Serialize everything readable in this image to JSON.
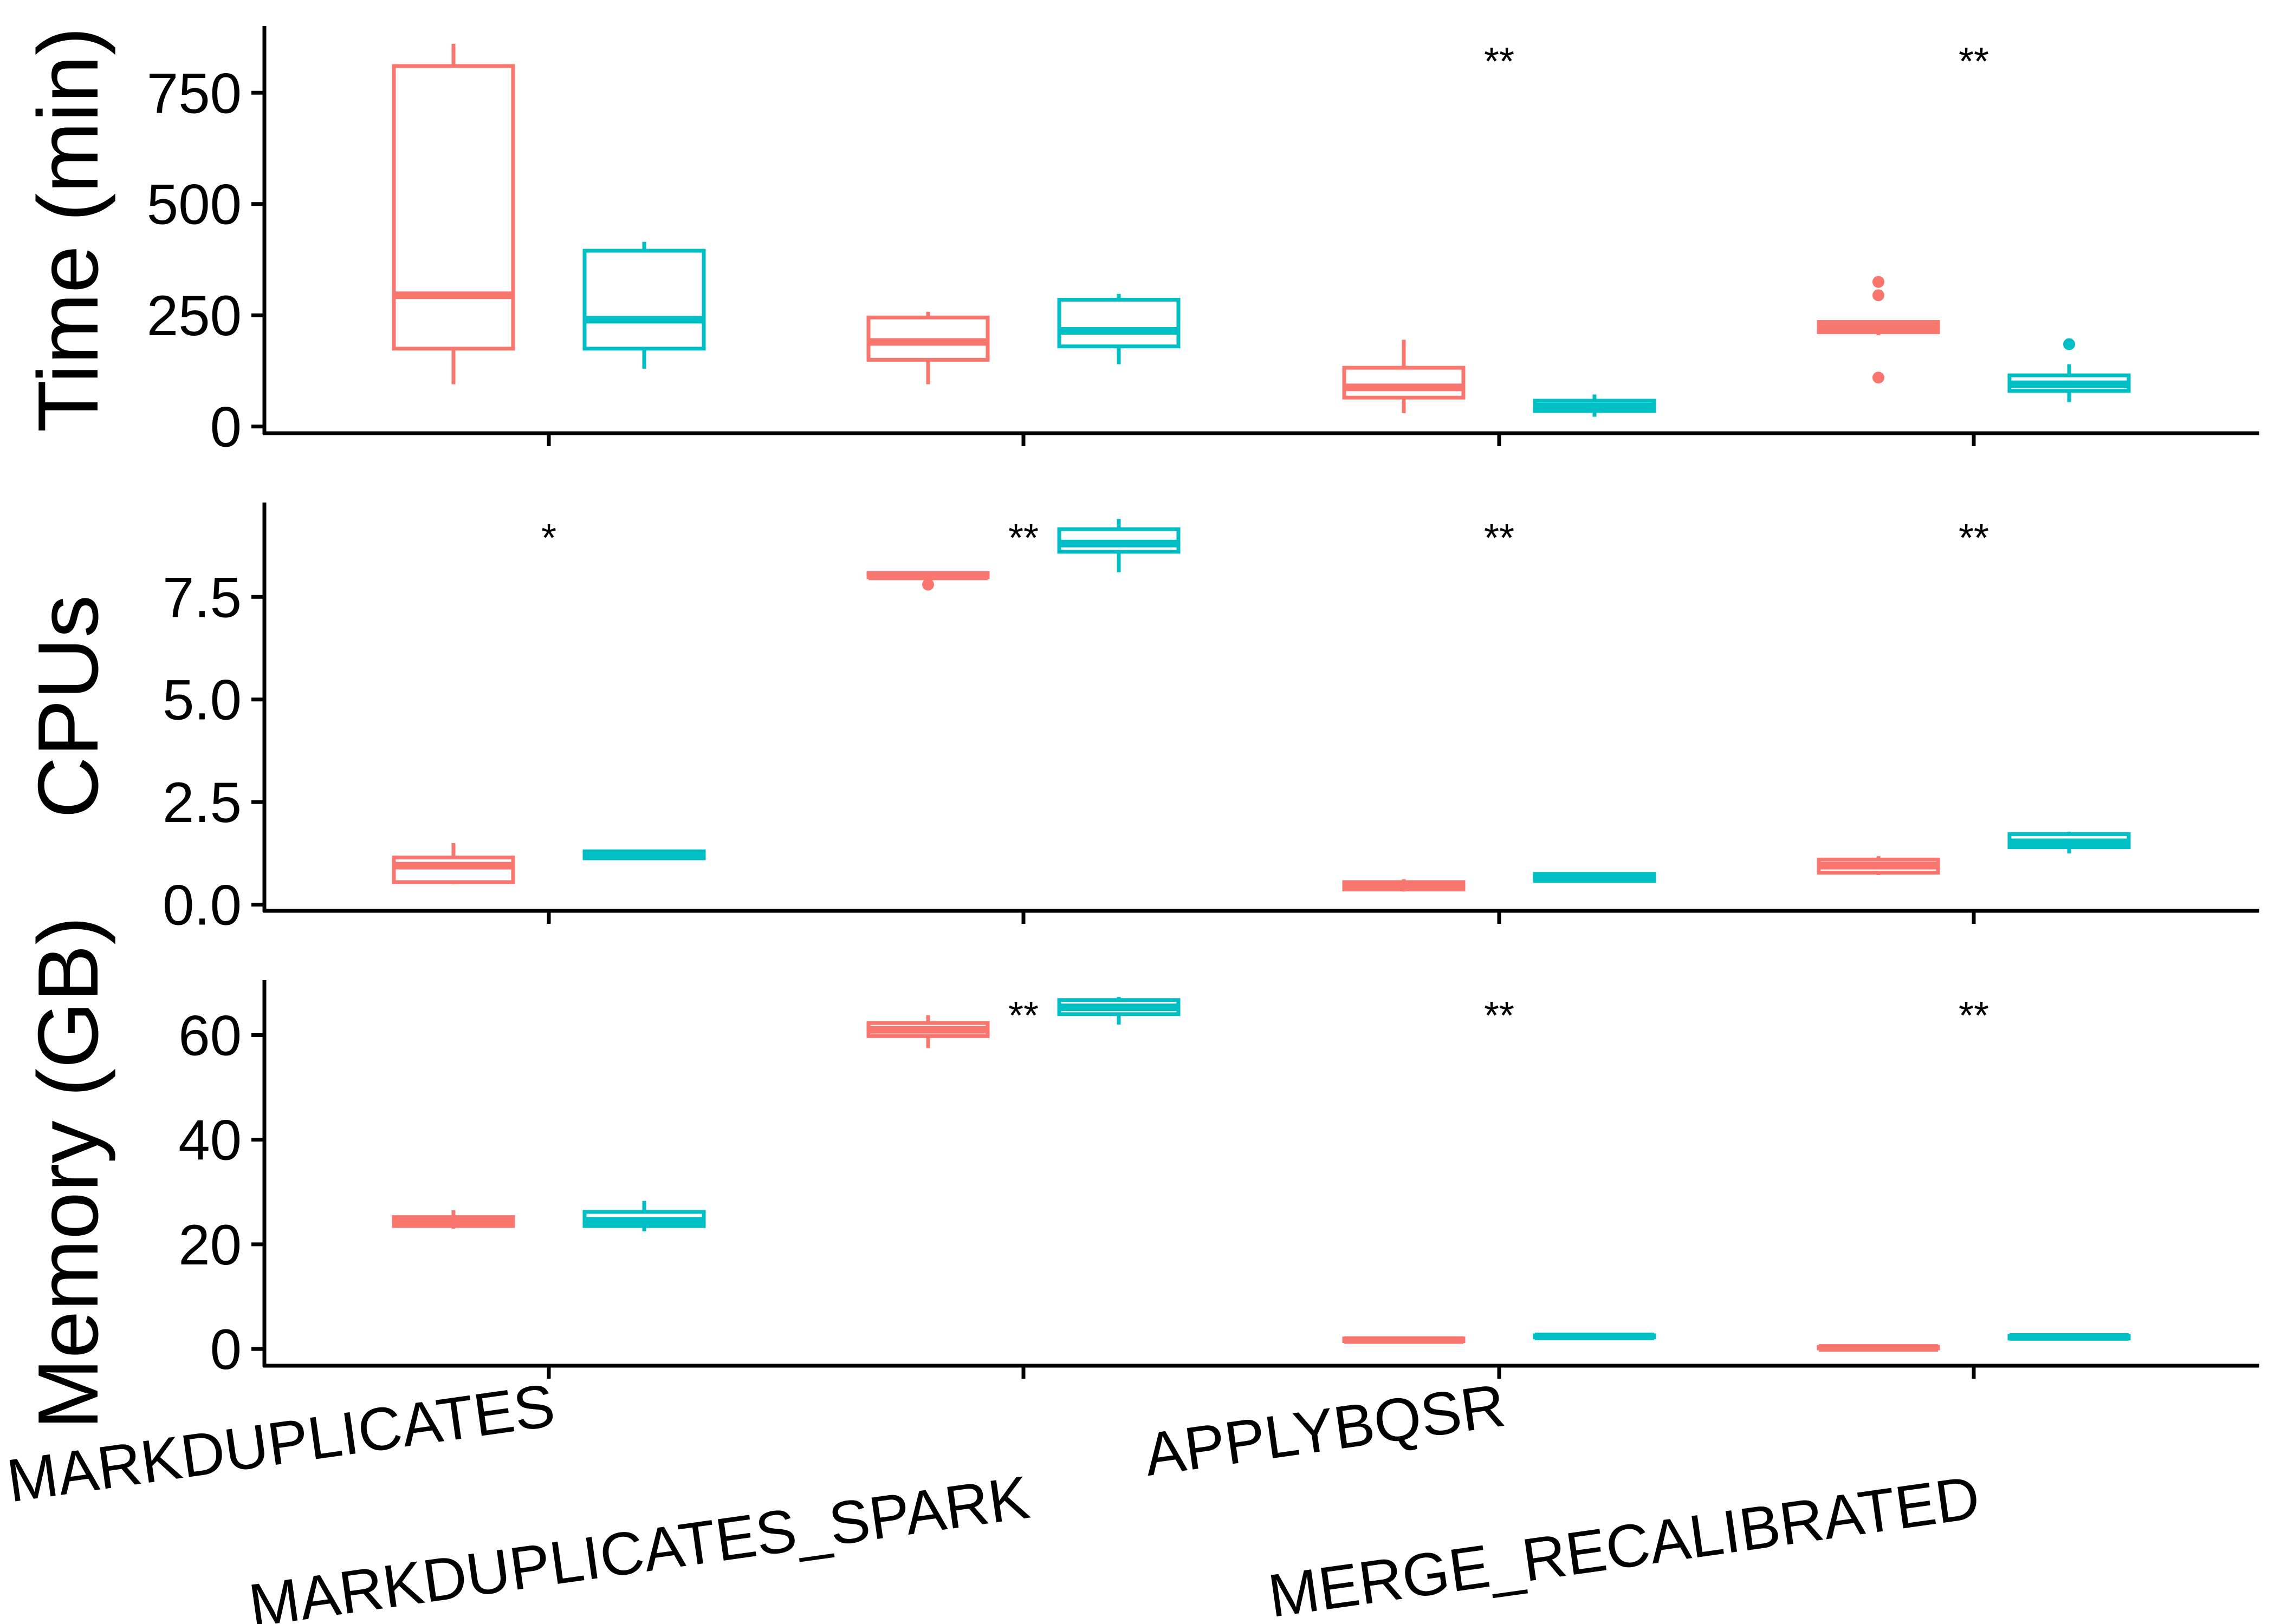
{
  "chart_data": {
    "type": "box",
    "categories": [
      "MARKDUPLICATES",
      "MARKDUPLICATES_SPARK",
      "APPLYBQSR",
      "MERGE_RECALIBRATED"
    ],
    "colors": [
      "#F8766D",
      "#00BFC4"
    ],
    "panels": [
      {
        "ylabel": "Time (min)",
        "ylim": [
          -15,
          900
        ],
        "yticks": [
          0,
          250,
          500,
          750
        ],
        "ytick_labels": [
          "0",
          "250",
          "500",
          "750"
        ],
        "significance": [
          "",
          "",
          "**",
          "**"
        ],
        "series": [
          {
            "color": "#F8766D",
            "boxes": [
              {
                "min": 95,
                "q1": 175,
                "median": 295,
                "q3": 810,
                "max": 860,
                "outliers": []
              },
              {
                "min": 95,
                "q1": 150,
                "median": 190,
                "q3": 245,
                "max": 258,
                "outliers": []
              },
              {
                "min": 30,
                "q1": 65,
                "median": 88,
                "q3": 132,
                "max": 195,
                "outliers": []
              },
              {
                "min": 205,
                "q1": 212,
                "median": 222,
                "q3": 235,
                "max": 238,
                "outliers": [
                  110,
                  295,
                  325
                ]
              }
            ]
          },
          {
            "color": "#00BFC4",
            "boxes": [
              {
                "min": 130,
                "q1": 175,
                "median": 240,
                "q3": 395,
                "max": 415,
                "outliers": []
              },
              {
                "min": 140,
                "q1": 180,
                "median": 215,
                "q3": 285,
                "max": 298,
                "outliers": []
              },
              {
                "min": 22,
                "q1": 35,
                "median": 45,
                "q3": 58,
                "max": 72,
                "outliers": []
              },
              {
                "min": 55,
                "q1": 80,
                "median": 95,
                "q3": 115,
                "max": 140,
                "outliers": [
                  185
                ]
              }
            ]
          }
        ]
      },
      {
        "ylabel": "CPUs",
        "ylim": [
          -0.15,
          9.8
        ],
        "yticks": [
          0,
          2.5,
          5,
          7.5
        ],
        "ytick_labels": [
          "0.0",
          "2.5",
          "5.0",
          "7.5"
        ],
        "significance": [
          "*",
          "**",
          "**",
          "**"
        ],
        "series": [
          {
            "color": "#F8766D",
            "boxes": [
              {
                "min": 0.5,
                "q1": 0.55,
                "median": 0.95,
                "q3": 1.15,
                "max": 1.5,
                "outliers": []
              },
              {
                "min": 7.95,
                "q1": 7.98,
                "median": 8.0,
                "q3": 8.08,
                "max": 8.12,
                "outliers": [
                  7.8
                ]
              },
              {
                "min": 0.32,
                "q1": 0.37,
                "median": 0.45,
                "q3": 0.55,
                "max": 0.62,
                "outliers": []
              },
              {
                "min": 0.72,
                "q1": 0.78,
                "median": 0.95,
                "q3": 1.1,
                "max": 1.18,
                "outliers": []
              }
            ]
          },
          {
            "color": "#00BFC4",
            "boxes": [
              {
                "min": 1.1,
                "q1": 1.13,
                "median": 1.2,
                "q3": 1.3,
                "max": 1.33,
                "outliers": []
              },
              {
                "min": 8.1,
                "q1": 8.6,
                "median": 8.8,
                "q3": 9.15,
                "max": 9.4,
                "outliers": []
              },
              {
                "min": 0.55,
                "q1": 0.58,
                "median": 0.65,
                "q3": 0.75,
                "max": 0.78,
                "outliers": []
              },
              {
                "min": 1.25,
                "q1": 1.4,
                "median": 1.52,
                "q3": 1.72,
                "max": 1.78,
                "outliers": []
              }
            ]
          }
        ]
      },
      {
        "ylabel": "Memory (GB)",
        "ylim": [
          -3.2,
          70.5
        ],
        "yticks": [
          0,
          20,
          40,
          60
        ],
        "ytick_labels": [
          "0",
          "20",
          "40",
          "60"
        ],
        "significance": [
          "",
          "**",
          "**",
          "**"
        ],
        "series": [
          {
            "color": "#F8766D",
            "boxes": [
              {
                "min": 23,
                "q1": 23.5,
                "median": 24.2,
                "q3": 25.2,
                "max": 26.5,
                "outliers": []
              },
              {
                "min": 57.5,
                "q1": 59.8,
                "median": 61,
                "q3": 62.3,
                "max": 63.8,
                "outliers": []
              },
              {
                "min": 1.3,
                "q1": 1.5,
                "median": 1.7,
                "q3": 2.0,
                "max": 2.1,
                "outliers": []
              },
              {
                "min": 0,
                "q1": 0.1,
                "median": 0.2,
                "q3": 0.4,
                "max": 0.5,
                "outliers": []
              }
            ]
          },
          {
            "color": "#00BFC4",
            "boxes": [
              {
                "min": 22.5,
                "q1": 23.5,
                "median": 24.5,
                "q3": 26.2,
                "max": 28.3,
                "outliers": []
              },
              {
                "min": 62,
                "q1": 64,
                "median": 65.3,
                "q3": 66.7,
                "max": 67.3,
                "outliers": []
              },
              {
                "min": 2.1,
                "q1": 2.2,
                "median": 2.4,
                "q3": 2.6,
                "max": 2.7,
                "outliers": []
              },
              {
                "min": 1.8,
                "q1": 2.0,
                "median": 2.3,
                "q3": 2.5,
                "max": 2.6,
                "outliers": []
              }
            ]
          }
        ]
      }
    ],
    "xtick_labels": [
      "MARKDUPLICATES",
      "MARKDUPLICATES_SPARK",
      "APPLYBQSR",
      "MERGE_RECALIBRATED"
    ],
    "xlabel": "",
    "grid": false,
    "legend": "none"
  }
}
